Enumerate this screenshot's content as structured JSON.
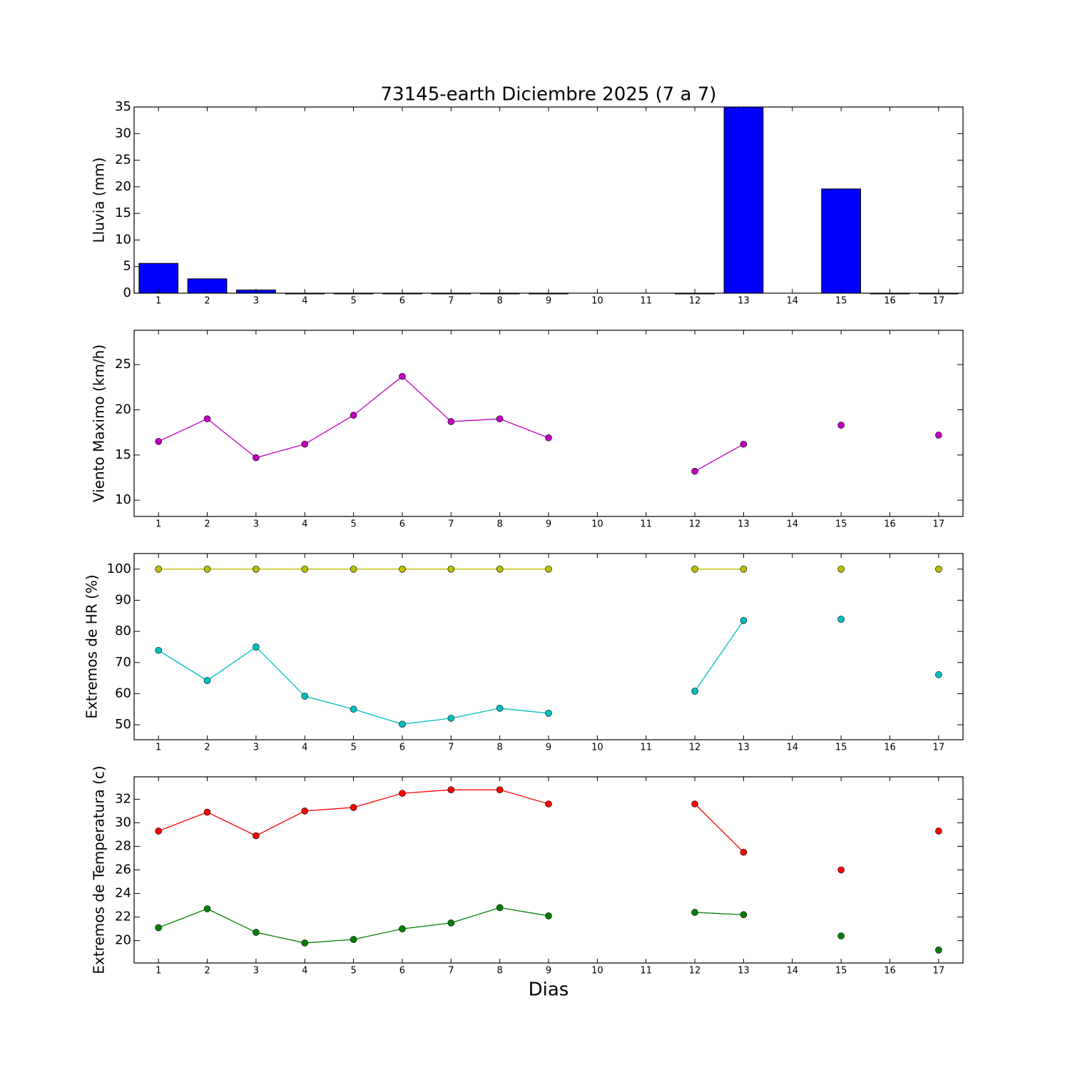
{
  "chart_data": [
    {
      "type": "bar",
      "title": "73145-earth Diciembre 2025  (7 a 7)",
      "y_label": "Lluvia (mm)",
      "x": [
        1,
        2,
        3,
        4,
        5,
        6,
        7,
        8,
        9,
        10,
        11,
        12,
        13,
        14,
        15,
        16,
        17
      ],
      "values": [
        5.6,
        2.7,
        0.6,
        0,
        0,
        0,
        0,
        0,
        0,
        null,
        null,
        0,
        35,
        null,
        19.6,
        0,
        0
      ],
      "color": "#0000ff",
      "xlim": [
        0.5,
        17.5
      ],
      "xticks": [
        1,
        2,
        3,
        4,
        5,
        6,
        7,
        8,
        9,
        10,
        11,
        12,
        13,
        14,
        15,
        16,
        17
      ],
      "ylim": [
        0,
        35
      ],
      "yticks": [
        0,
        5,
        10,
        15,
        20,
        25,
        30,
        35
      ]
    },
    {
      "type": "line",
      "y_label": "Viento Maximo (km/h)",
      "x": [
        1,
        2,
        3,
        4,
        5,
        6,
        7,
        8,
        9,
        10,
        11,
        12,
        13,
        14,
        15,
        16,
        17
      ],
      "series": [
        {
          "color": "#bf00bf",
          "values": [
            16.5,
            19.0,
            14.7,
            16.2,
            19.4,
            23.7,
            18.7,
            19.0,
            16.9,
            null,
            null,
            13.2,
            16.2,
            null,
            18.3,
            null,
            17.2
          ]
        }
      ],
      "xlim": [
        0.5,
        17.5
      ],
      "xticks": [
        1,
        2,
        3,
        4,
        5,
        6,
        7,
        8,
        9,
        10,
        11,
        12,
        13,
        14,
        15,
        16,
        17
      ],
      "ylim": [
        8.2,
        28.8
      ],
      "yticks": [
        10,
        15,
        20,
        25
      ]
    },
    {
      "type": "line",
      "y_label": "Extremos de HR (%)",
      "x": [
        1,
        2,
        3,
        4,
        5,
        6,
        7,
        8,
        9,
        10,
        11,
        12,
        13,
        14,
        15,
        16,
        17
      ],
      "series": [
        {
          "color": "#bfbf00",
          "values": [
            100,
            100,
            100,
            100,
            100,
            100,
            100,
            100,
            100,
            null,
            null,
            100,
            100,
            null,
            100,
            null,
            100
          ]
        },
        {
          "color": "#00bfbf",
          "values": [
            73.9,
            64.2,
            75.0,
            59.2,
            55.0,
            50.2,
            52.1,
            55.3,
            53.7,
            null,
            null,
            60.8,
            83.5,
            null,
            83.9,
            null,
            66.1
          ]
        }
      ],
      "xlim": [
        0.5,
        17.5
      ],
      "xticks": [
        1,
        2,
        3,
        4,
        5,
        6,
        7,
        8,
        9,
        10,
        11,
        12,
        13,
        14,
        15,
        16,
        17
      ],
      "ylim": [
        45.2,
        105
      ],
      "yticks": [
        50,
        60,
        70,
        80,
        90,
        100
      ]
    },
    {
      "type": "line",
      "y_label": "Extremos de Temperatura (c)",
      "x_label": "Dias",
      "x": [
        1,
        2,
        3,
        4,
        5,
        6,
        7,
        8,
        9,
        10,
        11,
        12,
        13,
        14,
        15,
        16,
        17
      ],
      "series": [
        {
          "color": "#ff0000",
          "values": [
            29.3,
            30.9,
            28.9,
            31.0,
            31.3,
            32.5,
            32.8,
            32.8,
            31.6,
            null,
            null,
            31.6,
            27.5,
            null,
            26.0,
            null,
            29.3
          ]
        },
        {
          "color": "#008000",
          "values": [
            21.1,
            22.7,
            20.7,
            19.8,
            20.1,
            21.0,
            21.5,
            22.8,
            22.1,
            null,
            null,
            22.4,
            22.2,
            null,
            20.4,
            null,
            19.2
          ]
        }
      ],
      "xlim": [
        0.5,
        17.5
      ],
      "xticks": [
        1,
        2,
        3,
        4,
        5,
        6,
        7,
        8,
        9,
        10,
        11,
        12,
        13,
        14,
        15,
        16,
        17
      ],
      "ylim": [
        18.1,
        33.9
      ],
      "yticks": [
        20,
        22,
        24,
        26,
        28,
        30,
        32
      ]
    }
  ]
}
